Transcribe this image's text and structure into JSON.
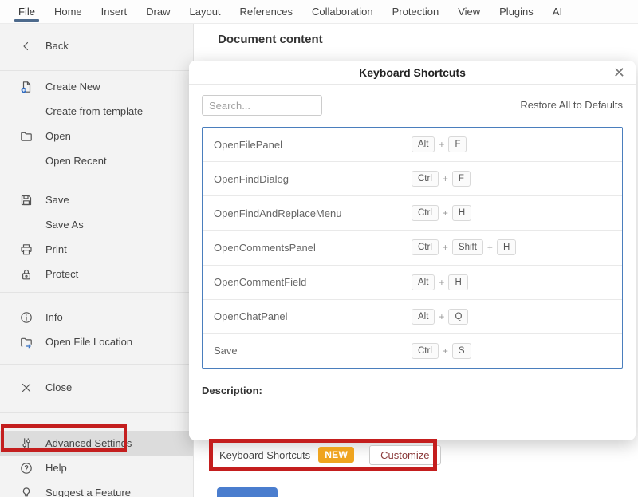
{
  "menubar": {
    "tabs": [
      {
        "label": "File",
        "active": true
      },
      {
        "label": "Home",
        "active": false
      },
      {
        "label": "Insert",
        "active": false
      },
      {
        "label": "Draw",
        "active": false
      },
      {
        "label": "Layout",
        "active": false
      },
      {
        "label": "References",
        "active": false
      },
      {
        "label": "Collaboration",
        "active": false
      },
      {
        "label": "Protection",
        "active": false
      },
      {
        "label": "View",
        "active": false
      },
      {
        "label": "Plugins",
        "active": false
      },
      {
        "label": "AI",
        "active": false
      }
    ]
  },
  "sidebar": {
    "groups": [
      {
        "items": [
          {
            "icon": "chevron-left",
            "label": "Back"
          }
        ]
      },
      {
        "items": [
          {
            "icon": "create-new",
            "label": "Create New"
          },
          {
            "icon": null,
            "label": "Create from template"
          },
          {
            "icon": "folder-open",
            "label": "Open"
          },
          {
            "icon": null,
            "label": "Open Recent"
          }
        ]
      },
      {
        "items": [
          {
            "icon": "save",
            "label": "Save"
          },
          {
            "icon": null,
            "label": "Save As"
          },
          {
            "icon": "printer",
            "label": "Print"
          },
          {
            "icon": "lock",
            "label": "Protect"
          }
        ]
      },
      {
        "items": [
          {
            "icon": "info",
            "label": "Info"
          },
          {
            "icon": "folder-arrow",
            "label": "Open File Location"
          }
        ]
      },
      {
        "items": [
          {
            "icon": "close",
            "label": "Close"
          }
        ]
      },
      {
        "items": [
          {
            "icon": "sliders",
            "label": "Advanced Settings",
            "highlighted": true
          },
          {
            "icon": "help",
            "label": "Help"
          },
          {
            "icon": "bulb",
            "label": "Suggest a Feature"
          }
        ]
      }
    ]
  },
  "main": {
    "heading": "Document content",
    "settings_row": {
      "label": "Keyboard Shortcuts",
      "badge": "NEW",
      "button": "Customize"
    }
  },
  "dialog": {
    "title": "Keyboard Shortcuts",
    "close_glyph": "✕",
    "search_placeholder": "Search...",
    "restore_link": "Restore All to Defaults",
    "plus_separator": "+",
    "shortcuts": [
      {
        "action": "OpenFilePanel",
        "keys": [
          "Alt",
          "F"
        ]
      },
      {
        "action": "OpenFindDialog",
        "keys": [
          "Ctrl",
          "F"
        ]
      },
      {
        "action": "OpenFindAndReplaceMenu",
        "keys": [
          "Ctrl",
          "H"
        ]
      },
      {
        "action": "OpenCommentsPanel",
        "keys": [
          "Ctrl",
          "Shift",
          "H"
        ]
      },
      {
        "action": "OpenCommentField",
        "keys": [
          "Alt",
          "H"
        ]
      },
      {
        "action": "OpenChatPanel",
        "keys": [
          "Alt",
          "Q"
        ]
      },
      {
        "action": "Save",
        "keys": [
          "Ctrl",
          "S"
        ]
      }
    ],
    "description_label": "Description:"
  },
  "colors": {
    "accent_blue_list_border": "#4a7ebd",
    "active_tab_underline": "#4d6a8c",
    "annotation_red": "#c41e1e",
    "new_badge": "#efa41f",
    "apply_button_blue": "#4a7dce",
    "sidebar_bg": "#f3f3f3",
    "sidebar_highlight": "#dcdcdc",
    "icon_accent_blue": "#2f6bc0"
  }
}
